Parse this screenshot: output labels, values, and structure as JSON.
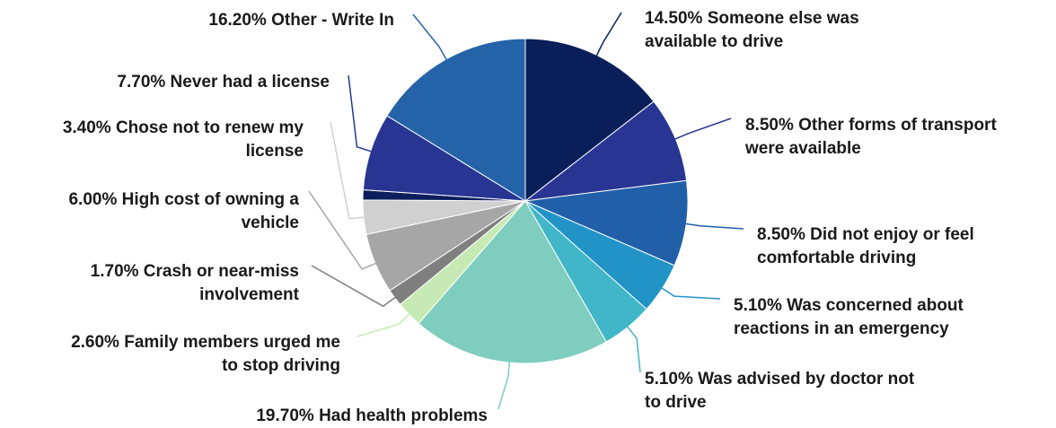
{
  "chart_data": {
    "type": "pie",
    "slices": [
      {
        "value": 14.5,
        "pct": "14.50%",
        "lines": [
          "14.50% Someone else was",
          "available to drive"
        ],
        "color": "#0a1f5a"
      },
      {
        "value": 8.5,
        "pct": "8.50%",
        "lines": [
          "8.50% Other forms of transport",
          "were available"
        ],
        "color": "#283593"
      },
      {
        "value": 8.5,
        "pct": "8.50%",
        "lines": [
          "8.50% Did not enjoy or feel",
          "comfortable driving"
        ],
        "color": "#2160a8"
      },
      {
        "value": 5.1,
        "pct": "5.10%",
        "lines": [
          "5.10% Was concerned about",
          "reactions in an emergency"
        ],
        "color": "#2193c7"
      },
      {
        "value": 5.1,
        "pct": "5.10%",
        "lines": [
          "5.10% Was advised by doctor not",
          "to drive"
        ],
        "color": "#41b6c8"
      },
      {
        "value": 19.7,
        "pct": "19.70%",
        "lines": [
          "19.70% Had health problems"
        ],
        "color": "#7fcdbe"
      },
      {
        "value": 2.6,
        "pct": "2.60%",
        "lines": [
          "2.60% Family members urged me",
          "to stop driving"
        ],
        "color": "#c7e9b4"
      },
      {
        "value": 1.7,
        "pct": "1.70%",
        "lines": [
          "1.70% Crash or near-miss",
          "involvement"
        ],
        "color": "#7f7f7f"
      },
      {
        "value": 6.0,
        "pct": "6.00%",
        "lines": [
          "6.00% High cost of owning a",
          "vehicle"
        ],
        "color": "#a6a6a6"
      },
      {
        "value": 3.4,
        "pct": "3.40%",
        "lines": [
          "3.40% Chose not to renew my",
          "license"
        ],
        "color": "#d0d0d0"
      },
      {
        "value": 1.0,
        "pct": "",
        "lines": [],
        "color": "#0c1f5c"
      },
      {
        "value": 7.7,
        "pct": "7.70%",
        "lines": [
          "7.70% Never had a license"
        ],
        "color": "#283593"
      },
      {
        "value": 16.2,
        "pct": "16.20%",
        "lines": [
          "16.20% Other - Write In"
        ],
        "color": "#2563a8"
      }
    ]
  }
}
